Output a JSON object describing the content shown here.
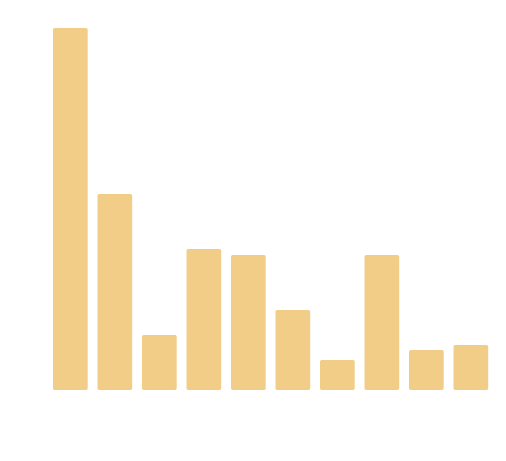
{
  "chart_data": {
    "type": "bar",
    "values": [
      362,
      196,
      55,
      141,
      135,
      80,
      30,
      135,
      40,
      45
    ],
    "ylim": [
      0,
      362
    ],
    "grid": false,
    "legend": "none",
    "bar_color": "#f2cd88"
  }
}
